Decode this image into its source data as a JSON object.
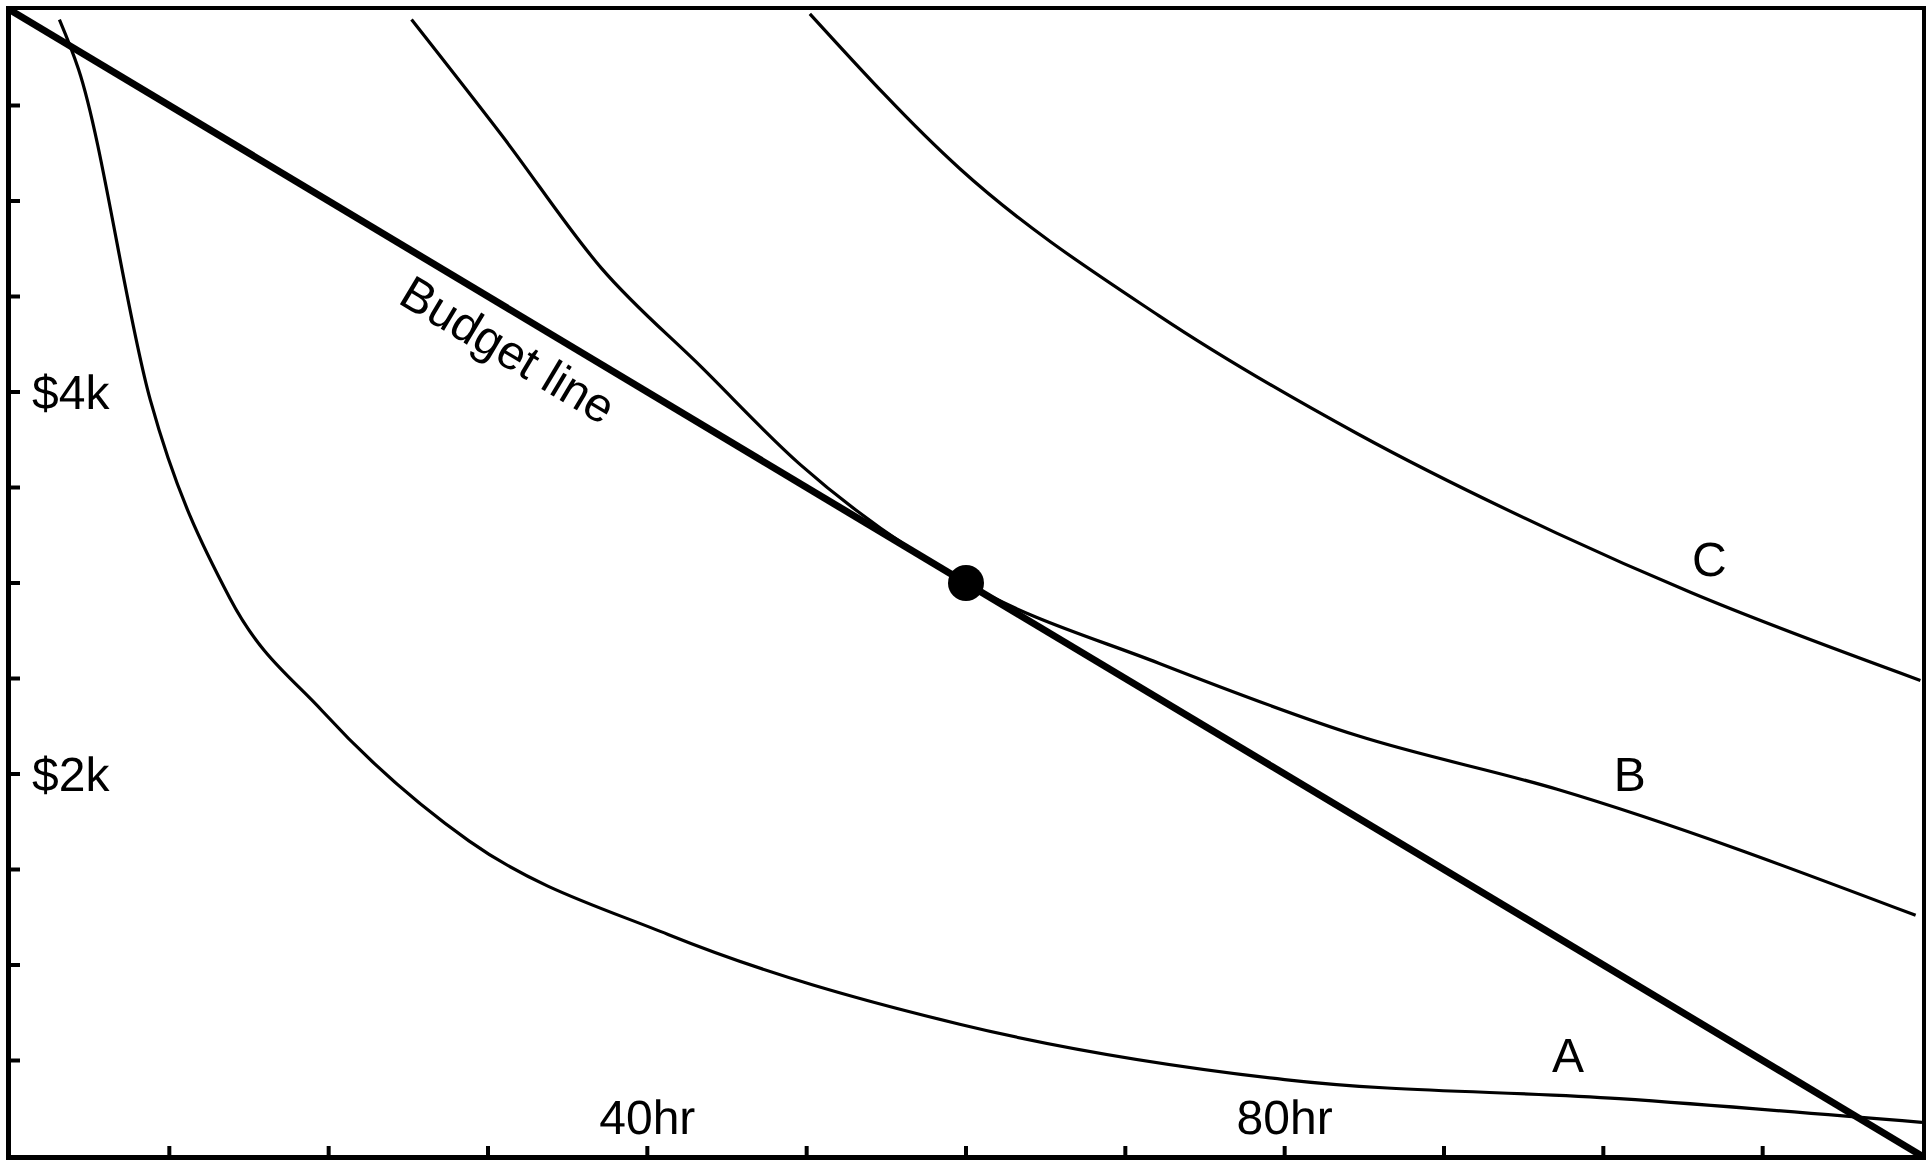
{
  "chart_data": {
    "type": "line",
    "xlim": [
      0,
      120
    ],
    "ylim": [
      0,
      6000
    ],
    "xticks": [
      {
        "value": 10,
        "label": null
      },
      {
        "value": 20,
        "label": null
      },
      {
        "value": 30,
        "label": null
      },
      {
        "value": 40,
        "label": "40hr"
      },
      {
        "value": 50,
        "label": null
      },
      {
        "value": 60,
        "label": null
      },
      {
        "value": 70,
        "label": null
      },
      {
        "value": 80,
        "label": "80hr"
      },
      {
        "value": 90,
        "label": null
      },
      {
        "value": 100,
        "label": null
      },
      {
        "value": 110,
        "label": null
      }
    ],
    "yticks": [
      {
        "value": 500,
        "label": null
      },
      {
        "value": 1000,
        "label": null
      },
      {
        "value": 1500,
        "label": null
      },
      {
        "value": 2000,
        "label": "$2k"
      },
      {
        "value": 2500,
        "label": null
      },
      {
        "value": 3000,
        "label": null
      },
      {
        "value": 3500,
        "label": null
      },
      {
        "value": 4000,
        "label": "$4k"
      },
      {
        "value": 4500,
        "label": null
      },
      {
        "value": 5000,
        "label": null
      },
      {
        "value": 5500,
        "label": null
      }
    ],
    "grid": false,
    "legend": false,
    "marker": "none",
    "line_style": "solid",
    "series": [
      {
        "name": "A",
        "color": "#000000",
        "x": [
          3.1,
          4.3,
          8.8,
          13.8,
          19.6,
          28.8,
          41.3,
          59.6,
          80,
          101,
          120
        ],
        "values": [
          5950,
          5690,
          3960,
          2920,
          2330,
          1650,
          1160,
          690,
          400,
          300,
          176
        ]
      },
      {
        "name": "B",
        "color": "#000000",
        "x": [
          25.2,
          30.9,
          37.1,
          43.4,
          49.6,
          60,
          72.1,
          84.6,
          97.1,
          119.6
        ],
        "values": [
          5950,
          5340,
          4650,
          4130,
          3620,
          3000,
          2580,
          2200,
          1920,
          1260
        ]
      },
      {
        "name": "C",
        "color": "#000000",
        "x": [
          50.2,
          59.6,
          72.1,
          84.6,
          97.1,
          105.5,
          119.9
        ],
        "values": [
          5980,
          5170,
          4400,
          3780,
          3260,
          2950,
          2490
        ]
      },
      {
        "name": "Budget line",
        "color": "#000000",
        "x": [
          0,
          120
        ],
        "values": [
          6000,
          0
        ]
      },
      {
        "type": "scatter",
        "color": "#000000",
        "marker": "circle",
        "x": [
          60
        ],
        "values": [
          3000
        ]
      }
    ]
  }
}
